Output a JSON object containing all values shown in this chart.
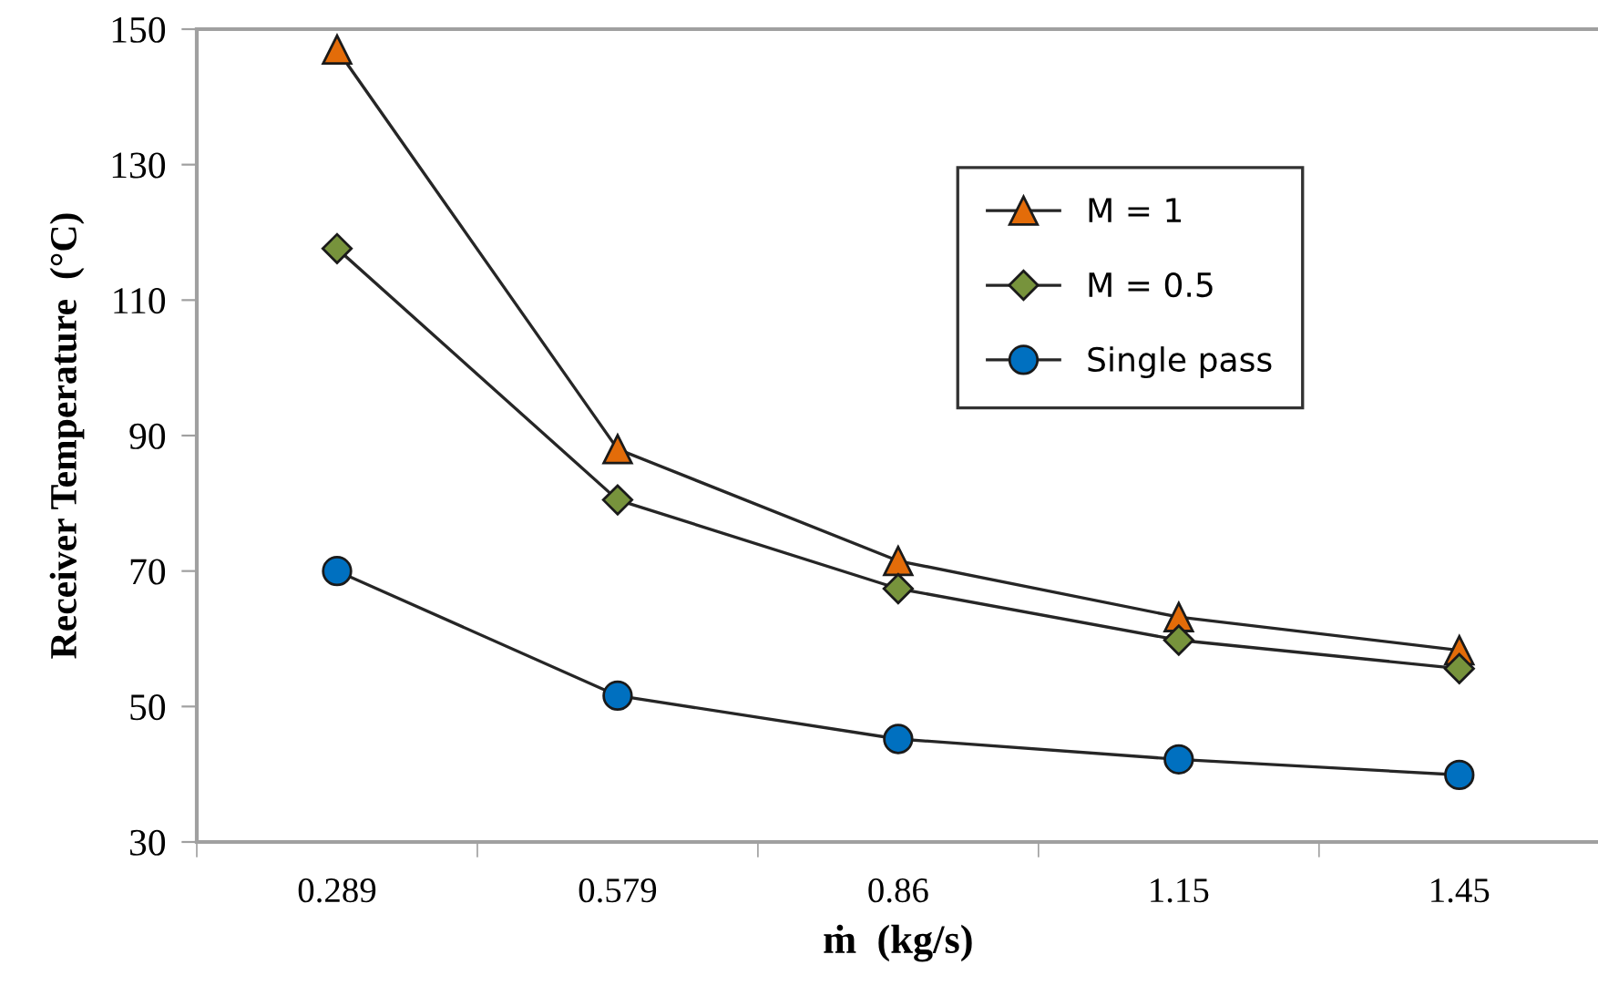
{
  "chart_data": {
    "type": "line",
    "xlabel": "ṁ  (kg/s)",
    "ylabel": "Receiver Temperature  (°C)",
    "categories": [
      "0.289",
      "0.579",
      "0.86",
      "1.15",
      "1.45"
    ],
    "series": [
      {
        "name": "M = 1",
        "color": "#e36c09",
        "marker": "triangle",
        "values": [
          147,
          88,
          71.5,
          63.2,
          58.3
        ]
      },
      {
        "name": "M = 0.5",
        "color": "#77933c",
        "marker": "diamond",
        "values": [
          117.6,
          80.5,
          67.4,
          59.8,
          55.6
        ]
      },
      {
        "name": "Single pass",
        "color": "#0070c0",
        "marker": "circle",
        "values": [
          70,
          51.6,
          45.2,
          42.2,
          39.9
        ]
      }
    ],
    "ylim": [
      30,
      150
    ],
    "yticks": [
      30,
      50,
      70,
      90,
      110,
      130,
      150
    ],
    "grid": false,
    "legend": "top right",
    "line_style": "solid"
  }
}
